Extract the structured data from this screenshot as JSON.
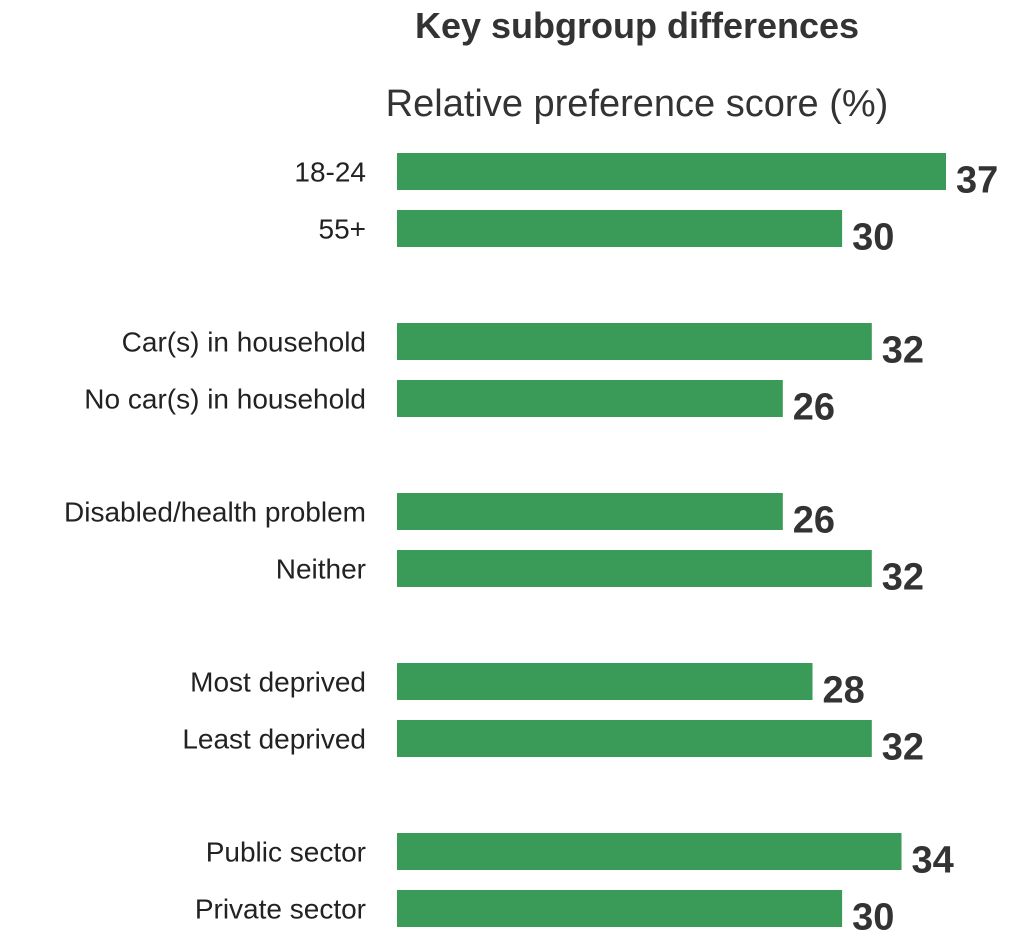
{
  "chart_data": {
    "type": "bar",
    "orientation": "horizontal",
    "title": "Key subgroup differences",
    "subtitle": "Relative preference score (%)",
    "categories": [
      "18-24",
      "55+",
      "Car(s) in household",
      "No car(s) in household",
      "Disabled/health problem",
      "Neither",
      "Most deprived",
      "Least deprived",
      "Public sector",
      "Private sector"
    ],
    "values": [
      37,
      30,
      32,
      26,
      26,
      32,
      28,
      32,
      34,
      30
    ],
    "groups": [
      [
        0,
        1
      ],
      [
        2,
        3
      ],
      [
        4,
        5
      ],
      [
        6,
        7
      ],
      [
        8,
        9
      ]
    ],
    "xlim": [
      0,
      37
    ],
    "bar_color": "#3A9A57",
    "grid": false,
    "legend": "none"
  }
}
